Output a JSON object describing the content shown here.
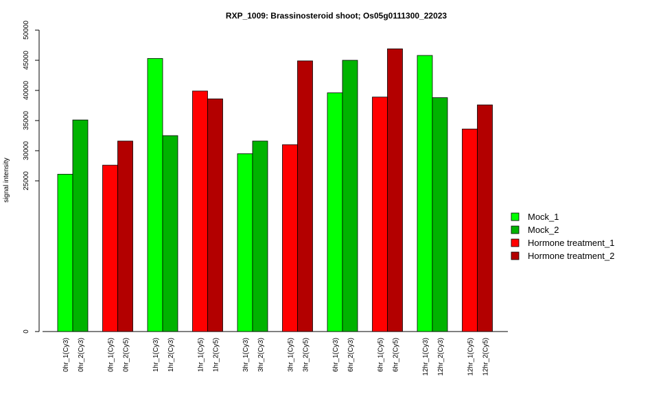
{
  "chart_data": {
    "type": "bar",
    "title": "RXP_1009: Brassinosteroid shoot; Os05g0111300_22023",
    "xlabel": "",
    "ylabel": "signal intensity",
    "ylim": [
      0,
      50000
    ],
    "axis_break": true,
    "yticks": [
      0,
      25000,
      30000,
      35000,
      40000,
      45000,
      50000
    ],
    "ytick_labels": [
      "0",
      "25000",
      "30000",
      "35000",
      "40000",
      "45000",
      "50000"
    ],
    "legend_position": "right",
    "series": [
      {
        "name": "Mock_1",
        "color": "#00ff00"
      },
      {
        "name": "Mock_2",
        "color": "#00b300"
      },
      {
        "name": "Hormone treatment_1",
        "color": "#ff0000"
      },
      {
        "name": "Hormone treatment_2",
        "color": "#b30000"
      }
    ],
    "groups": [
      {
        "bars": [
          {
            "label": "0hr_1(Cy3)",
            "value": 26100,
            "series": 0
          },
          {
            "label": "0hr_2(Cy3)",
            "value": 35100,
            "series": 1
          }
        ]
      },
      {
        "bars": [
          {
            "label": "0hr_1(Cy5)",
            "value": 27600,
            "series": 2
          },
          {
            "label": "0hr_2(Cy5)",
            "value": 31600,
            "series": 3
          }
        ]
      },
      {
        "bars": [
          {
            "label": "1hr_1(Cy3)",
            "value": 45300,
            "series": 0
          },
          {
            "label": "1hr_2(Cy3)",
            "value": 32500,
            "series": 1
          }
        ]
      },
      {
        "bars": [
          {
            "label": "1hr_1(Cy5)",
            "value": 39900,
            "series": 2
          },
          {
            "label": "1hr_2(Cy5)",
            "value": 38600,
            "series": 3
          }
        ]
      },
      {
        "bars": [
          {
            "label": "3hr_1(Cy3)",
            "value": 29500,
            "series": 0
          },
          {
            "label": "3hr_2(Cy3)",
            "value": 31600,
            "series": 1
          }
        ]
      },
      {
        "bars": [
          {
            "label": "3hr_1(Cy5)",
            "value": 31000,
            "series": 2
          },
          {
            "label": "3hr_2(Cy5)",
            "value": 44900,
            "series": 3
          }
        ]
      },
      {
        "bars": [
          {
            "label": "6hr_1(Cy3)",
            "value": 39600,
            "series": 0
          },
          {
            "label": "6hr_2(Cy3)",
            "value": 45000,
            "series": 1
          }
        ]
      },
      {
        "bars": [
          {
            "label": "6hr_1(Cy5)",
            "value": 38900,
            "series": 2
          },
          {
            "label": "6hr_2(Cy5)",
            "value": 46900,
            "series": 3
          }
        ]
      },
      {
        "bars": [
          {
            "label": "12hr_1(Cy3)",
            "value": 45800,
            "series": 0
          },
          {
            "label": "12hr_2(Cy3)",
            "value": 38800,
            "series": 1
          }
        ]
      },
      {
        "bars": [
          {
            "label": "12hr_1(Cy5)",
            "value": 33600,
            "series": 2
          },
          {
            "label": "12hr_2(Cy5)",
            "value": 37600,
            "series": 3
          }
        ]
      }
    ]
  }
}
